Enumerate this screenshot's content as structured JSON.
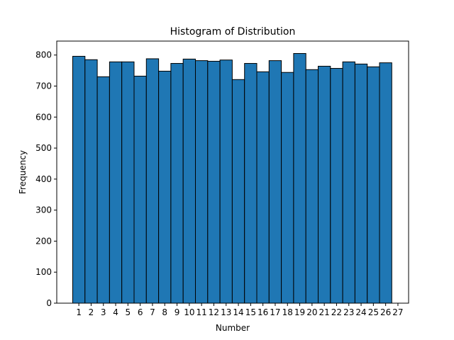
{
  "chart_data": {
    "type": "bar",
    "title": "Histogram of Distribution",
    "xlabel": "Number",
    "ylabel": "Frequency",
    "categories": [
      "1",
      "2",
      "3",
      "4",
      "5",
      "6",
      "7",
      "8",
      "9",
      "10",
      "11",
      "12",
      "13",
      "14",
      "15",
      "16",
      "17",
      "18",
      "19",
      "20",
      "21",
      "22",
      "23",
      "24",
      "25",
      "26"
    ],
    "values": [
      796,
      785,
      730,
      778,
      778,
      732,
      788,
      748,
      773,
      787,
      782,
      780,
      784,
      721,
      773,
      746,
      782,
      744,
      805,
      753,
      764,
      757,
      778,
      771,
      762,
      775
    ],
    "xticks": [
      "1",
      "2",
      "3",
      "4",
      "5",
      "6",
      "7",
      "8",
      "9",
      "10",
      "11",
      "12",
      "13",
      "14",
      "15",
      "16",
      "17",
      "18",
      "19",
      "20",
      "21",
      "22",
      "23",
      "24",
      "25",
      "26",
      "27"
    ],
    "yticks": [
      0,
      100,
      200,
      300,
      400,
      500,
      600,
      700,
      800
    ],
    "ylim": [
      0,
      845
    ],
    "grid": false,
    "bar_color": "#1f77b4",
    "edge_color": "#000000"
  }
}
